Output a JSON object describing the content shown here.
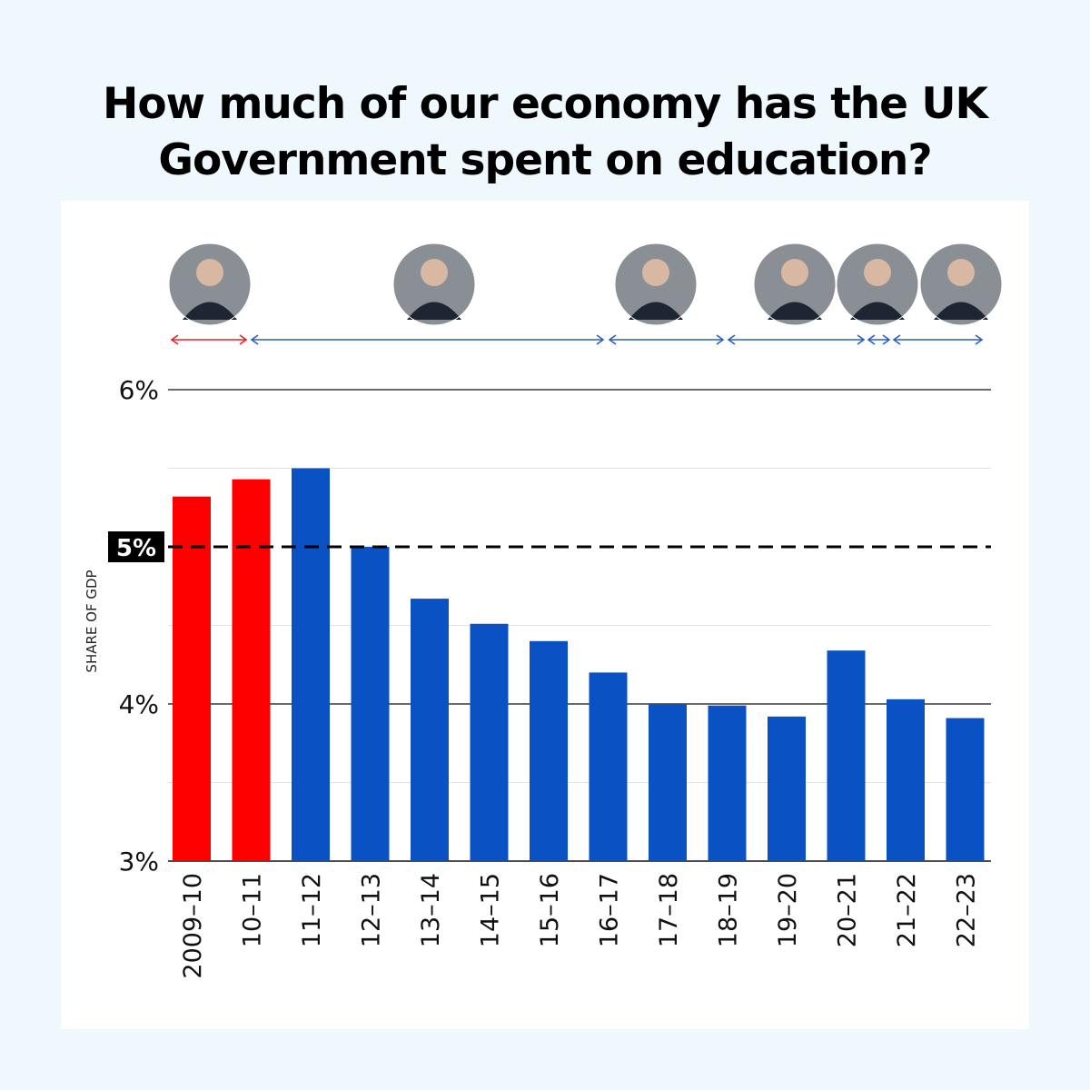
{
  "title": {
    "line1": "How much of our economy has the UK",
    "line2": "Government spent on education?"
  },
  "colors": {
    "page_background": "#eff8fc",
    "card_background": "#ffffff",
    "labour": "#ff0000",
    "conservative": "#0a51c3",
    "labour_arrow": "#e8202a",
    "conservative_arrow": "#2b5fbd"
  },
  "chart_data": {
    "type": "bar",
    "title": "How much of our economy has the UK Government spent on education?",
    "ylabel": "SHARE OF GDP",
    "xlabel": "",
    "ylim": [
      3,
      6.1
    ],
    "yticks": [
      {
        "value": 3,
        "label": "3%"
      },
      {
        "value": 4,
        "label": "4%"
      },
      {
        "value": 5,
        "label": "5%",
        "highlight": true
      },
      {
        "value": 6,
        "label": "6%"
      }
    ],
    "minor_gridlines": [
      3.5,
      4.5,
      5.5
    ],
    "reference_line": {
      "value": 5,
      "style": "dashed",
      "label": "5%"
    },
    "categories": [
      "2009–10",
      "10–11",
      "11–12",
      "12–13",
      "13–14",
      "14–15",
      "15–16",
      "16–17",
      "17–18",
      "18–19",
      "19–20",
      "20–21",
      "21–22",
      "22–23"
    ],
    "values": [
      5.32,
      5.43,
      5.5,
      5.0,
      4.67,
      4.51,
      4.4,
      4.2,
      4.0,
      3.99,
      3.92,
      4.34,
      4.03,
      3.91
    ],
    "bar_party": [
      "labour",
      "labour",
      "conservative",
      "conservative",
      "conservative",
      "conservative",
      "conservative",
      "conservative",
      "conservative",
      "conservative",
      "conservative",
      "conservative",
      "conservative",
      "conservative"
    ],
    "legend": "none",
    "grid": true,
    "prime_ministers": [
      {
        "portrait": "prime-minister-portrait-1",
        "party": "labour",
        "from_category": "2009–10",
        "to_category": "10–11"
      },
      {
        "portrait": "prime-minister-portrait-2",
        "party": "conservative",
        "from_category": "11–12",
        "to_category": "16–17"
      },
      {
        "portrait": "prime-minister-portrait-3",
        "party": "conservative",
        "from_category": "17–18",
        "to_category": "18–19"
      },
      {
        "portrait": "prime-minister-portrait-4",
        "party": "conservative",
        "from_category": "19–20",
        "to_category": "21–22"
      },
      {
        "portrait": "prime-minister-portrait-5",
        "party": "conservative",
        "from_category": "21–22",
        "to_category": "21–22"
      },
      {
        "portrait": "prime-minister-portrait-6",
        "party": "conservative",
        "from_category": "22–23",
        "to_category": "22–23"
      }
    ]
  }
}
